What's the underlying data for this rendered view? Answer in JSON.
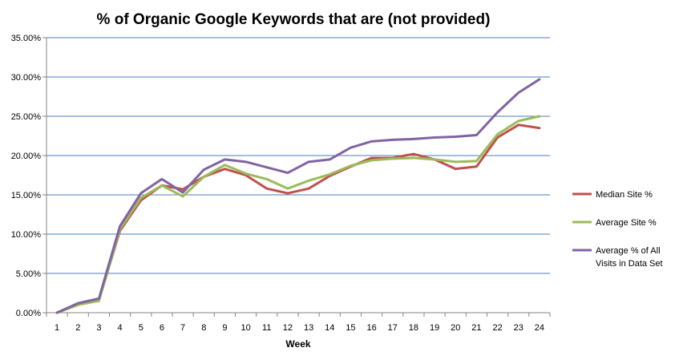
{
  "chart_data": {
    "type": "line",
    "title": "% of Organic Google Keywords that are (not provided)",
    "xlabel": "Week",
    "ylabel": "",
    "x": [
      1,
      2,
      3,
      4,
      5,
      6,
      7,
      8,
      9,
      10,
      11,
      12,
      13,
      14,
      15,
      16,
      17,
      18,
      19,
      20,
      21,
      22,
      23,
      24
    ],
    "ylim": [
      0,
      35
    ],
    "y_ticks": [
      0,
      5,
      10,
      15,
      20,
      25,
      30,
      35
    ],
    "y_tick_labels": [
      "0.00%",
      "5.00%",
      "10.00%",
      "15.00%",
      "20.00%",
      "25.00%",
      "30.00%",
      "35.00%"
    ],
    "grid": true,
    "legend_position": "right",
    "series": [
      {
        "name": "Median Site %",
        "color": "#C0504D",
        "values": [
          0.0,
          1.0,
          1.6,
          10.4,
          14.3,
          16.2,
          15.7,
          17.3,
          18.3,
          17.5,
          15.8,
          15.2,
          15.8,
          17.4,
          18.6,
          19.7,
          19.7,
          20.2,
          19.5,
          18.3,
          18.6,
          22.3,
          23.9,
          23.5
        ]
      },
      {
        "name": "Average Site %",
        "color": "#9BBB59",
        "values": [
          0.0,
          1.0,
          1.5,
          10.6,
          14.6,
          16.2,
          14.8,
          17.3,
          18.8,
          17.7,
          17.0,
          15.8,
          16.8,
          17.6,
          18.7,
          19.4,
          19.6,
          19.7,
          19.5,
          19.2,
          19.3,
          22.7,
          24.4,
          25.0
        ]
      },
      {
        "name": "Average % of All Visits in Data Set",
        "legend_lines": [
          "Average % of All",
          "Visits in Data Set"
        ],
        "color": "#8064A2",
        "values": [
          0.0,
          1.2,
          1.8,
          11.0,
          15.2,
          17.0,
          15.3,
          18.2,
          19.5,
          19.2,
          18.5,
          17.8,
          19.2,
          19.5,
          21.0,
          21.8,
          22.0,
          22.1,
          22.3,
          22.4,
          22.6,
          25.5,
          28.0,
          29.7
        ]
      }
    ]
  }
}
